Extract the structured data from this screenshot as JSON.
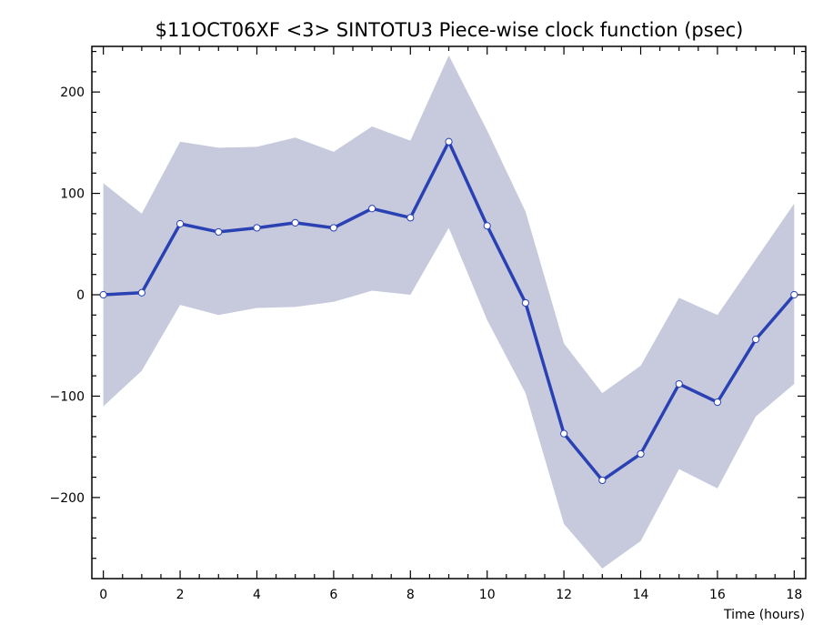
{
  "chart_data": {
    "type": "line",
    "title": "$11OCT06XF <3>  SINTOTU3  Piece-wise clock function (psec)",
    "xlabel": "Time (hours)",
    "ylabel": "",
    "xlim": [
      -0.3,
      18.3
    ],
    "ylim": [
      -280,
      245
    ],
    "xticks": [
      0,
      2,
      4,
      6,
      8,
      10,
      12,
      14,
      16,
      18
    ],
    "yticks": [
      -200,
      -100,
      0,
      100,
      200
    ],
    "x": [
      0,
      1,
      2,
      3,
      4,
      5,
      6,
      7,
      8,
      9,
      10,
      11,
      12,
      13,
      14,
      15,
      16,
      17,
      18
    ],
    "series": [
      {
        "values": [
          0,
          2,
          70,
          62,
          66,
          71,
          66,
          85,
          76,
          151,
          68,
          -8,
          -137,
          -183,
          -157,
          -88,
          -106,
          -44,
          0
        ]
      }
    ],
    "band_upper": [
      110,
      80,
      151,
      145,
      146,
      155,
      141,
      166,
      152,
      236,
      162,
      82,
      -48,
      -97,
      -70,
      -3,
      -20,
      35,
      90
    ],
    "band_lower": [
      -110,
      -75,
      -10,
      -20,
      -13,
      -12,
      -7,
      4,
      0,
      66,
      -25,
      -97,
      -226,
      -270,
      -243,
      -172,
      -191,
      -120,
      -88
    ],
    "colors": {
      "line": "#2a41b4",
      "band": "#c6cadc",
      "marker_fill": "#ffffff",
      "marker_stroke": "#2a41b4"
    },
    "grid": false,
    "legend": "none"
  }
}
